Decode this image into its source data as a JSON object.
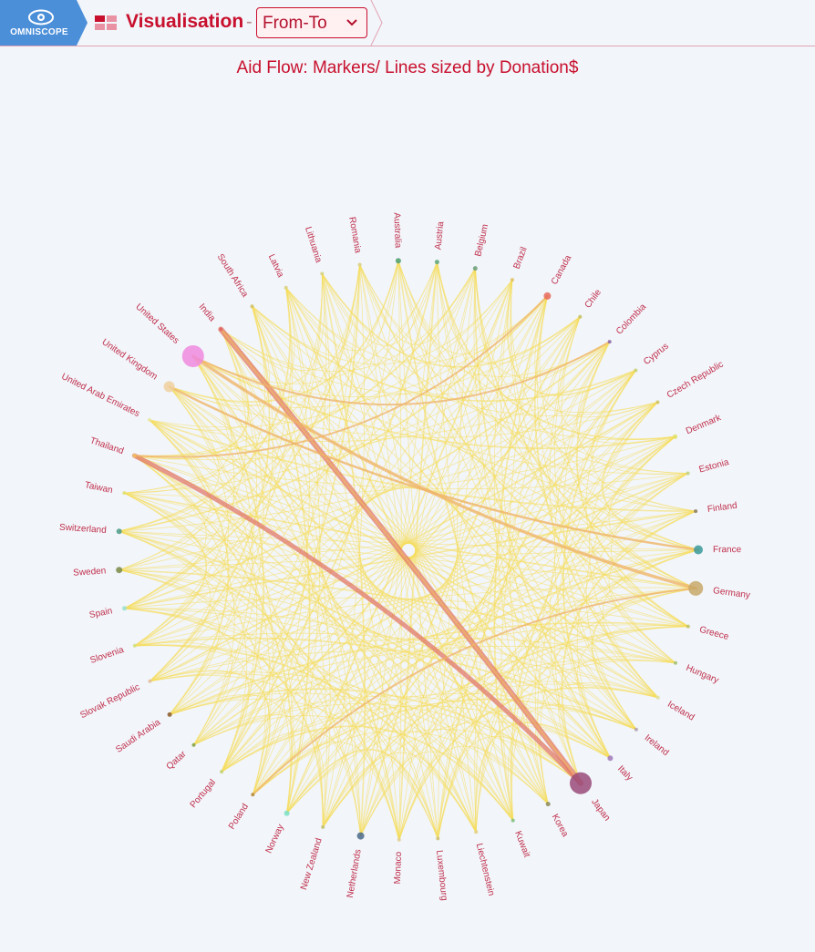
{
  "app": {
    "logo_text": "OMNISCOPE",
    "view_title": "Visualisation",
    "separator": "-",
    "view_selector": {
      "selected": "From-To"
    }
  },
  "icons": {
    "logo": "eye-icon",
    "view": "visualisation-grid-icon",
    "dropdown": "chevron-down-icon"
  },
  "colors": {
    "accent": "#c8102e",
    "logo_bg": "#4b8fd9",
    "background": "#f2f5f9",
    "link": "#f5dc5a",
    "link_major": "#e27a6a"
  },
  "chart_data": {
    "type": "chord-network",
    "title": "Aid Flow: Markers/ Lines sized by Donation$",
    "nodes": [
      {
        "name": "Australia",
        "size": 2,
        "color": "#4e9e6e"
      },
      {
        "name": "Austria",
        "size": 1.5,
        "color": "#5aa57a"
      },
      {
        "name": "Belgium",
        "size": 1.5,
        "color": "#6a9e7a"
      },
      {
        "name": "Brazil",
        "size": 1,
        "color": "#e0c060"
      },
      {
        "name": "Canada",
        "size": 3,
        "color": "#e86a5a"
      },
      {
        "name": "Chile",
        "size": 1,
        "color": "#c6c060"
      },
      {
        "name": "Colombia",
        "size": 1,
        "color": "#8a6aaa"
      },
      {
        "name": "Cyprus",
        "size": 1,
        "color": "#c6d070"
      },
      {
        "name": "Czech Republic",
        "size": 1,
        "color": "#d0c060"
      },
      {
        "name": "Denmark",
        "size": 1.5,
        "color": "#e0e060"
      },
      {
        "name": "Estonia",
        "size": 1,
        "color": "#c0d080"
      },
      {
        "name": "Finland",
        "size": 1,
        "color": "#8a7a5a"
      },
      {
        "name": "France",
        "size": 4,
        "color": "#3a9a9a"
      },
      {
        "name": "Germany",
        "size": 7,
        "color": "#c8a86a"
      },
      {
        "name": "Greece",
        "size": 1,
        "color": "#c0c060"
      },
      {
        "name": "Hungary",
        "size": 1,
        "color": "#a0c070"
      },
      {
        "name": "Iceland",
        "size": 1,
        "color": "#e0e0a0"
      },
      {
        "name": "Ireland",
        "size": 1,
        "color": "#b0a0b0"
      },
      {
        "name": "Italy",
        "size": 2,
        "color": "#a07ac0"
      },
      {
        "name": "Japan",
        "size": 11,
        "color": "#9a4a7a"
      },
      {
        "name": "Korea",
        "size": 1.5,
        "color": "#8a8a5a"
      },
      {
        "name": "Kuwait",
        "size": 1,
        "color": "#80c080"
      },
      {
        "name": "Liechtenstein",
        "size": 1,
        "color": "#e0d080"
      },
      {
        "name": "Luxembourg",
        "size": 1,
        "color": "#d0c070"
      },
      {
        "name": "Monaco",
        "size": 1,
        "color": "#e0d090"
      },
      {
        "name": "Netherlands",
        "size": 3,
        "color": "#4a6a8a"
      },
      {
        "name": "New Zealand",
        "size": 1,
        "color": "#c0c070"
      },
      {
        "name": "Norway",
        "size": 2,
        "color": "#7ae0c8"
      },
      {
        "name": "Poland",
        "size": 1,
        "color": "#b08a3a"
      },
      {
        "name": "Portugal",
        "size": 1,
        "color": "#c0d070"
      },
      {
        "name": "Qatar",
        "size": 1,
        "color": "#80a040"
      },
      {
        "name": "Saudi Arabia",
        "size": 1.5,
        "color": "#8a5a2a"
      },
      {
        "name": "Slovak Republic",
        "size": 1,
        "color": "#e0c0a0"
      },
      {
        "name": "Slovenia",
        "size": 1,
        "color": "#d0e080"
      },
      {
        "name": "Spain",
        "size": 1.5,
        "color": "#9ae0d0"
      },
      {
        "name": "Sweden",
        "size": 2.5,
        "color": "#7a8a4a"
      },
      {
        "name": "Switzerland",
        "size": 2,
        "color": "#4a9a8a"
      },
      {
        "name": "Taiwan",
        "size": 1,
        "color": "#e0e070"
      },
      {
        "name": "Thailand",
        "size": 1,
        "color": "#f0c060"
      },
      {
        "name": "United Arab Emirates",
        "size": 1,
        "color": "#e8e8a0"
      },
      {
        "name": "United Kingdom",
        "size": 5,
        "color": "#f0d0a0"
      },
      {
        "name": "United States",
        "size": 11,
        "color": "#f08ae0"
      },
      {
        "name": "India",
        "size": 1,
        "color": "#e06060"
      },
      {
        "name": "South Africa",
        "size": 1,
        "color": "#d0c060"
      },
      {
        "name": "Latvia",
        "size": 1,
        "color": "#d8d080"
      },
      {
        "name": "Lithuania",
        "size": 1,
        "color": "#d8d080"
      },
      {
        "name": "Romania",
        "size": 1,
        "color": "#d8d080"
      }
    ],
    "major_flows": [
      {
        "from": "India",
        "to": "Japan",
        "weight": 6
      },
      {
        "from": "Thailand",
        "to": "Japan",
        "weight": 5
      },
      {
        "from": "United States",
        "to": "Germany",
        "weight": 3.5
      },
      {
        "from": "United Kingdom",
        "to": "France",
        "weight": 2.5
      },
      {
        "from": "United States",
        "to": "Colombia",
        "weight": 2
      },
      {
        "from": "Canada",
        "to": "Thailand",
        "weight": 2
      },
      {
        "from": "Germany",
        "to": "Poland",
        "weight": 2
      },
      {
        "from": "Japan",
        "to": "India",
        "weight": 2
      }
    ]
  }
}
